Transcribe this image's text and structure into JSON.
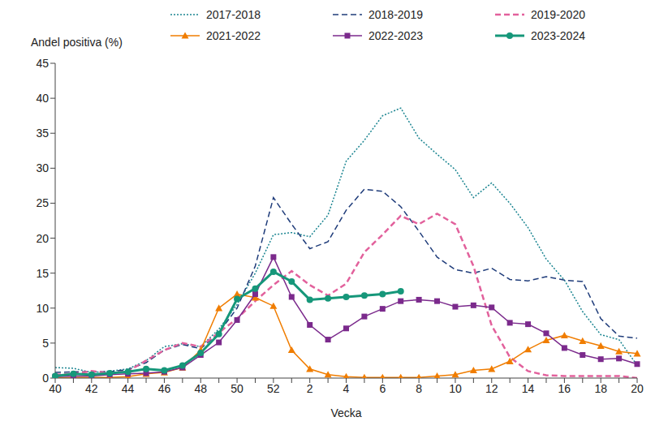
{
  "chart_data": {
    "type": "line",
    "y_label": "Andel positiva (%)",
    "x_label": "Vecka",
    "categories": [
      "40",
      null,
      "42",
      null,
      "44",
      null,
      "46",
      null,
      "48",
      null,
      "50",
      null,
      "52",
      null,
      "2",
      null,
      "4",
      null,
      "6",
      null,
      "8",
      null,
      "10",
      null,
      "12",
      null,
      "14",
      null,
      "16",
      null,
      "18",
      null,
      "20"
    ],
    "ylim": [
      0,
      45
    ],
    "yticks": [
      0,
      5,
      10,
      15,
      20,
      25,
      30,
      35,
      40,
      45
    ],
    "grid": false,
    "legend": "top",
    "series": [
      {
        "name": "2017-2018",
        "color": "#1b8591",
        "line_style": "dotted",
        "marker": "none",
        "values": [
          1.5,
          1.4,
          0.8,
          1.0,
          1.3,
          2.5,
          4.5,
          4.9,
          4.5,
          7.0,
          10.5,
          15.0,
          20.5,
          20.8,
          20.2,
          23.3,
          31.0,
          34.0,
          37.5,
          38.6,
          34.3,
          32.0,
          29.8,
          25.8,
          27.9,
          25.0,
          21.5,
          17.0,
          14.0,
          9.5,
          6.2,
          5.5,
          1.8
        ]
      },
      {
        "name": "2018-2019",
        "color": "#1f3c7a",
        "line_style": "dashed",
        "marker": "none",
        "values": [
          0.8,
          0.9,
          0.9,
          0.9,
          1.2,
          2.2,
          4.0,
          4.8,
          4.2,
          6.5,
          10.0,
          16.0,
          25.8,
          22.0,
          18.5,
          19.5,
          24.0,
          27.0,
          26.7,
          24.5,
          21.0,
          17.3,
          15.5,
          15.0,
          15.7,
          14.1,
          13.9,
          14.5,
          14.0,
          13.8,
          8.5,
          6.0,
          5.7
        ]
      },
      {
        "name": "2019-2020",
        "color": "#e2619c",
        "line_style": "dashed",
        "marker": "none",
        "values": [
          0.5,
          0.6,
          1.0,
          0.7,
          1.0,
          2.5,
          4.0,
          5.0,
          4.5,
          6.5,
          8.5,
          11.0,
          13.3,
          15.3,
          13.3,
          11.8,
          13.5,
          18.0,
          20.5,
          23.2,
          22.0,
          23.5,
          22.0,
          16.0,
          7.5,
          3.0,
          1.0,
          0.4,
          0.3,
          0.3,
          0.3,
          0.3,
          0.0
        ]
      },
      {
        "name": "2021-2022",
        "color": "#f07d00",
        "line_style": "solid",
        "marker": "triangle",
        "values": [
          0.0,
          0.1,
          0.1,
          0.1,
          0.2,
          0.6,
          0.8,
          1.5,
          4.0,
          10.0,
          12.0,
          11.5,
          10.3,
          4.0,
          1.3,
          0.5,
          0.2,
          0.1,
          0.1,
          0.1,
          0.1,
          0.3,
          0.5,
          1.1,
          1.3,
          2.4,
          4.1,
          5.4,
          6.1,
          5.3,
          4.6,
          3.8,
          3.5
        ]
      },
      {
        "name": "2022-2023",
        "color": "#7b2a8c",
        "line_style": "solid",
        "marker": "square",
        "values": [
          0.2,
          0.3,
          0.3,
          0.5,
          0.6,
          0.7,
          0.9,
          1.5,
          3.3,
          5.1,
          8.3,
          12.0,
          17.3,
          11.6,
          7.6,
          5.5,
          7.1,
          8.8,
          9.9,
          11.0,
          11.2,
          11.0,
          10.2,
          10.4,
          10.1,
          7.9,
          7.7,
          6.4,
          4.3,
          3.3,
          2.7,
          2.8,
          2.0
        ]
      },
      {
        "name": "2023-2024",
        "color": "#16977a",
        "line_style": "solid",
        "marker": "circle",
        "values": [
          0.3,
          0.6,
          0.5,
          0.7,
          0.9,
          1.3,
          1.1,
          1.8,
          3.6,
          6.3,
          11.3,
          12.8,
          15.2,
          13.8,
          11.2,
          11.4,
          11.6,
          11.8,
          12.0,
          12.4,
          null,
          null,
          null,
          null,
          null,
          null,
          null,
          null,
          null,
          null,
          null,
          null,
          null
        ]
      }
    ]
  }
}
